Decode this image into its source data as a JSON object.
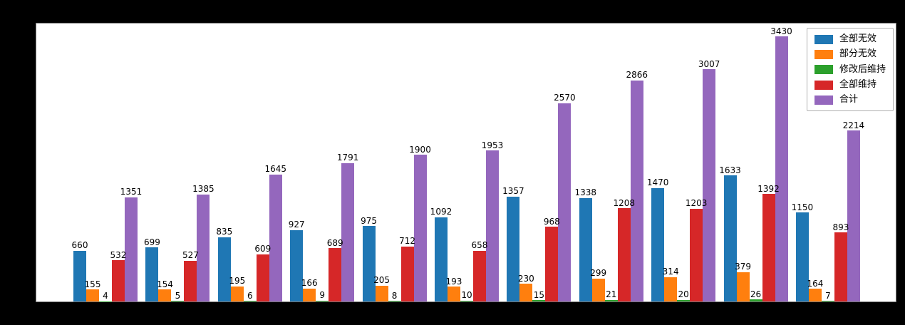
{
  "colors": {
    "figure_background": "#000000",
    "plot_background": "#ffffff",
    "spine": "#7a7a7a",
    "bar_label_text": "#000000",
    "legend_background": "#ffffff",
    "legend_border": "#b0b0b0"
  },
  "chart_data": {
    "type": "bar",
    "title": "",
    "xlabel": "",
    "ylabel": "",
    "categories": [
      "",
      "",
      "",
      "",
      "",
      "",
      "",
      "",
      "",
      "",
      ""
    ],
    "series": [
      {
        "name": "全部无效",
        "color": "#1f77b4",
        "values": [
          660,
          699,
          835,
          927,
          975,
          1092,
          1357,
          1338,
          1470,
          1633,
          1150
        ]
      },
      {
        "name": "部分无效",
        "color": "#ff7f0e",
        "values": [
          155,
          154,
          195,
          166,
          205,
          193,
          230,
          299,
          314,
          379,
          164
        ]
      },
      {
        "name": "修改后维持",
        "color": "#2ca02c",
        "values": [
          4,
          5,
          6,
          9,
          8,
          10,
          15,
          21,
          20,
          26,
          7
        ]
      },
      {
        "name": "全部维持",
        "color": "#d62728",
        "values": [
          532,
          527,
          609,
          689,
          712,
          658,
          968,
          1208,
          1203,
          1392,
          893
        ]
      },
      {
        "name": "合计",
        "color": "#9467bd",
        "values": [
          1351,
          1385,
          1645,
          1791,
          1900,
          1953,
          2570,
          2866,
          3007,
          3430,
          2214
        ]
      }
    ],
    "ylim": [
      0,
      3600
    ],
    "grid": false,
    "legend_position": "upper-right",
    "bar_value_labels": true,
    "x_tick_labels_visible": false,
    "y_tick_labels_visible": false
  }
}
